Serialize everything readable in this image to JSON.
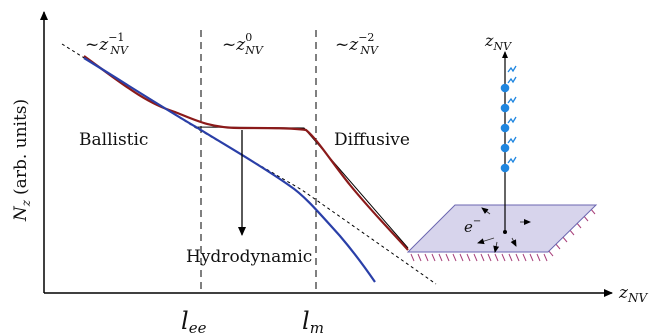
{
  "axes": {
    "y_label": "N",
    "y_label_sub": "z",
    "y_label_unit": "(arb. units)",
    "x_label": "z",
    "x_label_sub": "NV"
  },
  "scaling_labels": [
    {
      "prefix": "~z",
      "exponent": "−1",
      "sub": "NV"
    },
    {
      "prefix": "~z",
      "exponent": "0",
      "sub": "NV"
    },
    {
      "prefix": "~z",
      "exponent": "−2",
      "sub": "NV"
    }
  ],
  "regimes": {
    "ballistic": "Ballistic",
    "diffusive": "Diffusive",
    "hydrodynamic": "Hydrodynamic"
  },
  "x_ticks": {
    "lee": {
      "main": "l",
      "sub": "ee"
    },
    "lm": {
      "main": "l",
      "sub": "m"
    }
  },
  "inset": {
    "axis_label": "z",
    "axis_sub": "NV",
    "electron_label": "e",
    "electron_sup": "−"
  },
  "colors": {
    "red_curve": "#8b1a1a",
    "blue_curve": "#2a3fa8",
    "plate_fill": "#d7d4ec",
    "plate_edge": "#6b66b0",
    "hatch": "#a8407a",
    "nv_dot": "#1f86e0"
  }
}
